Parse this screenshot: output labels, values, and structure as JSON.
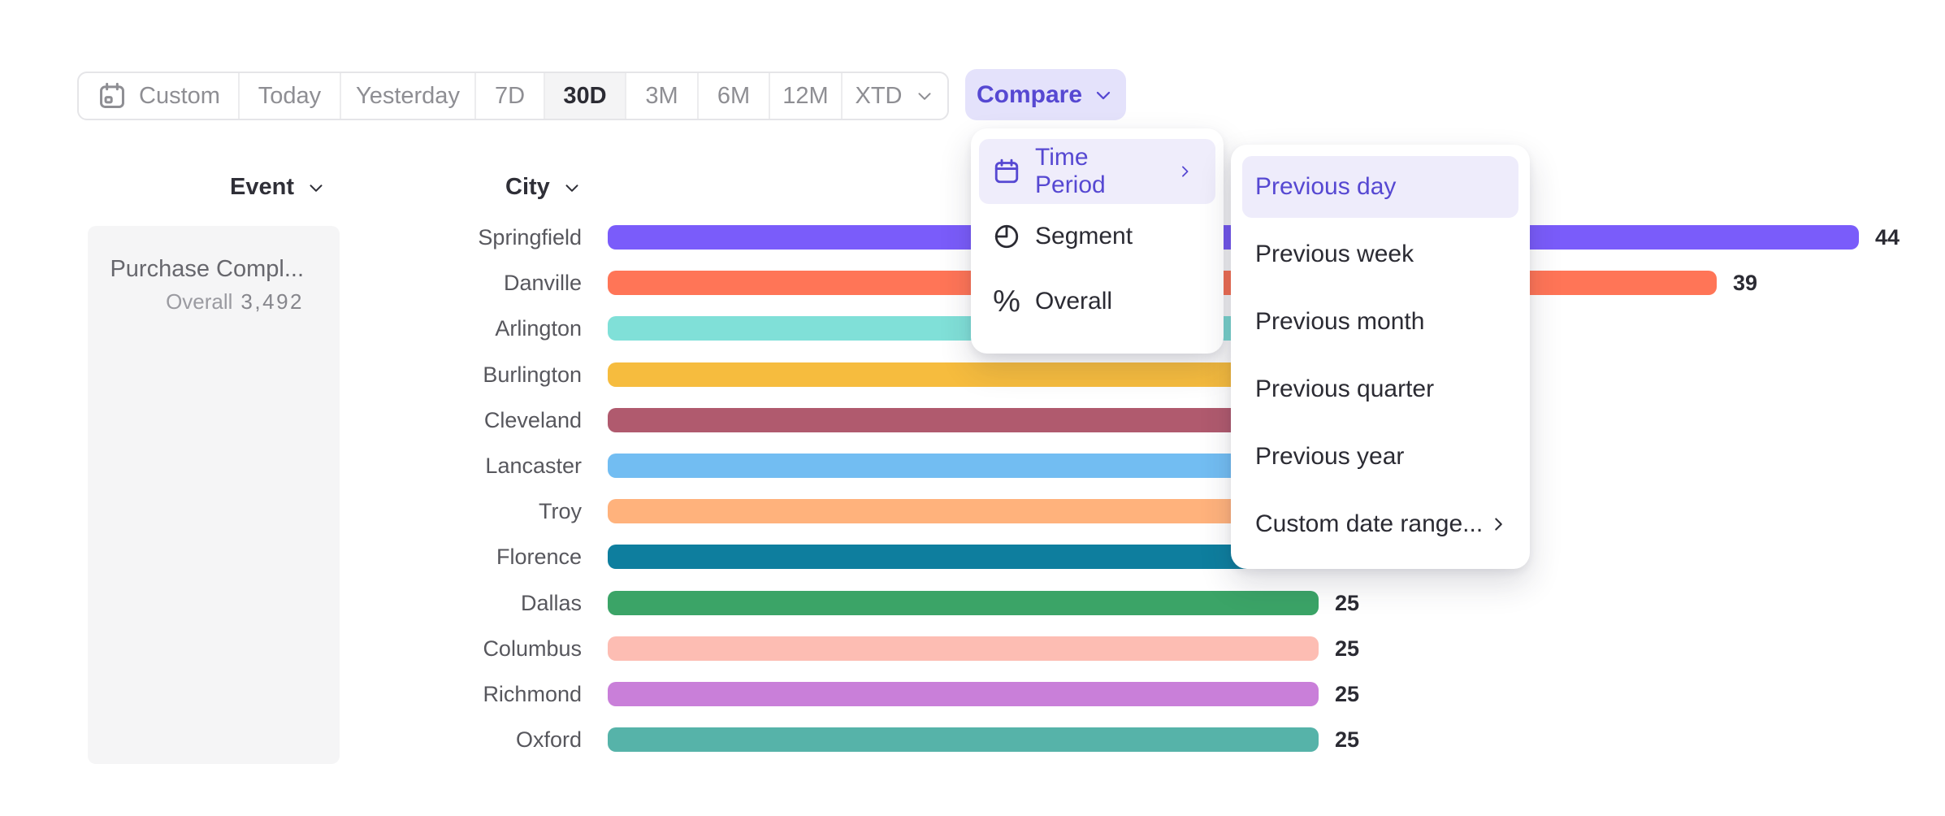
{
  "toolbar": {
    "items": [
      {
        "label": "Custom",
        "icon": "calendar-icon",
        "selected": false
      },
      {
        "label": "Today",
        "selected": false
      },
      {
        "label": "Yesterday",
        "selected": false
      },
      {
        "label": "7D",
        "selected": false
      },
      {
        "label": "30D",
        "selected": true
      },
      {
        "label": "3M",
        "selected": false
      },
      {
        "label": "6M",
        "selected": false
      },
      {
        "label": "12M",
        "selected": false
      },
      {
        "label": "XTD",
        "icon": "chevron-down-icon",
        "selected": false
      }
    ],
    "compare_label": "Compare"
  },
  "columns": {
    "event": "Event",
    "city": "City"
  },
  "event_card": {
    "title": "Purchase Compl...",
    "overall_label": "Overall",
    "overall_value": "3,492"
  },
  "chart_data": {
    "type": "bar",
    "orientation": "horizontal",
    "title": "",
    "xlabel": "",
    "ylabel": "City",
    "xlim": [
      0,
      47
    ],
    "categories": [
      "Springfield",
      "Danville",
      "Arlington",
      "Burlington",
      "Cleveland",
      "Lancaster",
      "Troy",
      "Florence",
      "Dallas",
      "Columbus",
      "Richmond",
      "Oxford"
    ],
    "values": [
      44,
      39,
      30,
      29,
      28,
      27,
      27,
      26,
      25,
      25,
      25,
      25
    ],
    "value_labels_visible": [
      true,
      true,
      false,
      false,
      false,
      false,
      false,
      false,
      true,
      true,
      true,
      true
    ],
    "colors": [
      "#7A5CFA",
      "#FF7557",
      "#80E0D8",
      "#F6BC3E",
      "#B05A6E",
      "#72BDF2",
      "#FFB27C",
      "#0E7E9E",
      "#3BA467",
      "#FDBDB3",
      "#C97FD9",
      "#56B3A9"
    ]
  },
  "compare_menu": {
    "items": [
      {
        "label": "Time Period",
        "icon": "calendar-icon",
        "highlighted": true,
        "has_submenu": true
      },
      {
        "label": "Segment",
        "icon": "segment-icon",
        "highlighted": false
      },
      {
        "label": "Overall",
        "icon": "percent-icon",
        "highlighted": false
      }
    ]
  },
  "time_period_submenu": {
    "items": [
      {
        "label": "Previous day",
        "highlighted": true
      },
      {
        "label": "Previous week",
        "highlighted": false
      },
      {
        "label": "Previous month",
        "highlighted": false
      },
      {
        "label": "Previous quarter",
        "highlighted": false
      },
      {
        "label": "Previous year",
        "highlighted": false
      },
      {
        "label": "Custom date range...",
        "highlighted": false,
        "has_submenu": true
      }
    ]
  },
  "theme": {
    "accent_purple": "#5648D2",
    "accent_purple_bg": "#E4E2FB",
    "highlight_pill_bg": "#EFEDFB",
    "text_dark": "#2B2B33",
    "text_gray": "#8E8E93",
    "label_gray": "#57575D",
    "card_bg": "#F5F5F6",
    "border": "#E5E5E8"
  }
}
